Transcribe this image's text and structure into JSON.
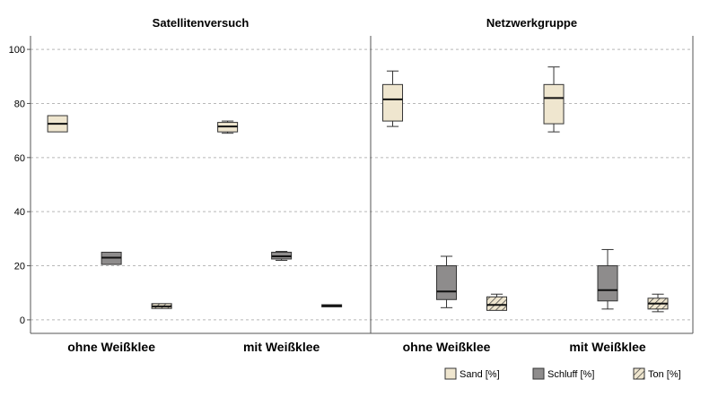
{
  "chart_data": {
    "type": "boxplot",
    "yticks": [
      0,
      20,
      40,
      60,
      80,
      100
    ],
    "ylim": [
      -5,
      105
    ],
    "grid": true,
    "legend_position": "bottom-right",
    "categories": [
      "ohne Weißklee",
      "mit Weißklee"
    ],
    "series_styles": {
      "Sand [%]": {
        "fill": "#efe6cf",
        "pattern": false
      },
      "Schluff [%]": {
        "fill": "#8e8c8c",
        "pattern": false
      },
      "Ton [%]": {
        "fill": "#efe6cf",
        "pattern": true
      }
    },
    "legend": [
      {
        "name": "Sand [%]"
      },
      {
        "name": "Schluff [%]"
      },
      {
        "name": "Ton [%]"
      }
    ],
    "panels": [
      {
        "title": "Satellitenversuch",
        "groups": [
          {
            "category": "ohne Weißklee",
            "boxes": [
              {
                "series": "Sand [%]",
                "min": 69.5,
                "q1": 69.5,
                "median": 72.5,
                "q3": 75.5,
                "max": 75.5
              },
              {
                "series": "Schluff [%]",
                "min": 20.5,
                "q1": 20.5,
                "median": 23,
                "q3": 25,
                "max": 25
              },
              {
                "series": "Ton [%]",
                "min": 4.2,
                "q1": 4.2,
                "median": 5,
                "q3": 6,
                "max": 6
              }
            ]
          },
          {
            "category": "mit Weißklee",
            "boxes": [
              {
                "series": "Sand [%]",
                "min": 69,
                "q1": 69.5,
                "median": 71.5,
                "q3": 73,
                "max": 73.5
              },
              {
                "series": "Schluff [%]",
                "min": 22,
                "q1": 22.5,
                "median": 23.5,
                "q3": 25,
                "max": 25.3
              },
              {
                "series": "Ton [%]",
                "min": 4.8,
                "q1": 4.8,
                "median": 5.2,
                "q3": 5.6,
                "max": 5.6
              }
            ]
          }
        ]
      },
      {
        "title": "Netzwerkgruppe",
        "groups": [
          {
            "category": "ohne Weißklee",
            "boxes": [
              {
                "series": "Sand [%]",
                "min": 71.5,
                "q1": 73.5,
                "median": 81.5,
                "q3": 87,
                "max": 92
              },
              {
                "series": "Schluff [%]",
                "min": 4.5,
                "q1": 7.5,
                "median": 10.5,
                "q3": 20,
                "max": 23.5
              },
              {
                "series": "Ton [%]",
                "min": 3.5,
                "q1": 3.5,
                "median": 5.5,
                "q3": 8.5,
                "max": 9.5
              }
            ]
          },
          {
            "category": "mit Weißklee",
            "boxes": [
              {
                "series": "Sand [%]",
                "min": 69.5,
                "q1": 72.5,
                "median": 82,
                "q3": 87,
                "max": 93.5
              },
              {
                "series": "Schluff [%]",
                "min": 4,
                "q1": 7,
                "median": 11,
                "q3": 20,
                "max": 26
              },
              {
                "series": "Ton [%]",
                "min": 3,
                "q1": 4,
                "median": 6,
                "q3": 8,
                "max": 9.5
              }
            ]
          }
        ]
      }
    ]
  }
}
